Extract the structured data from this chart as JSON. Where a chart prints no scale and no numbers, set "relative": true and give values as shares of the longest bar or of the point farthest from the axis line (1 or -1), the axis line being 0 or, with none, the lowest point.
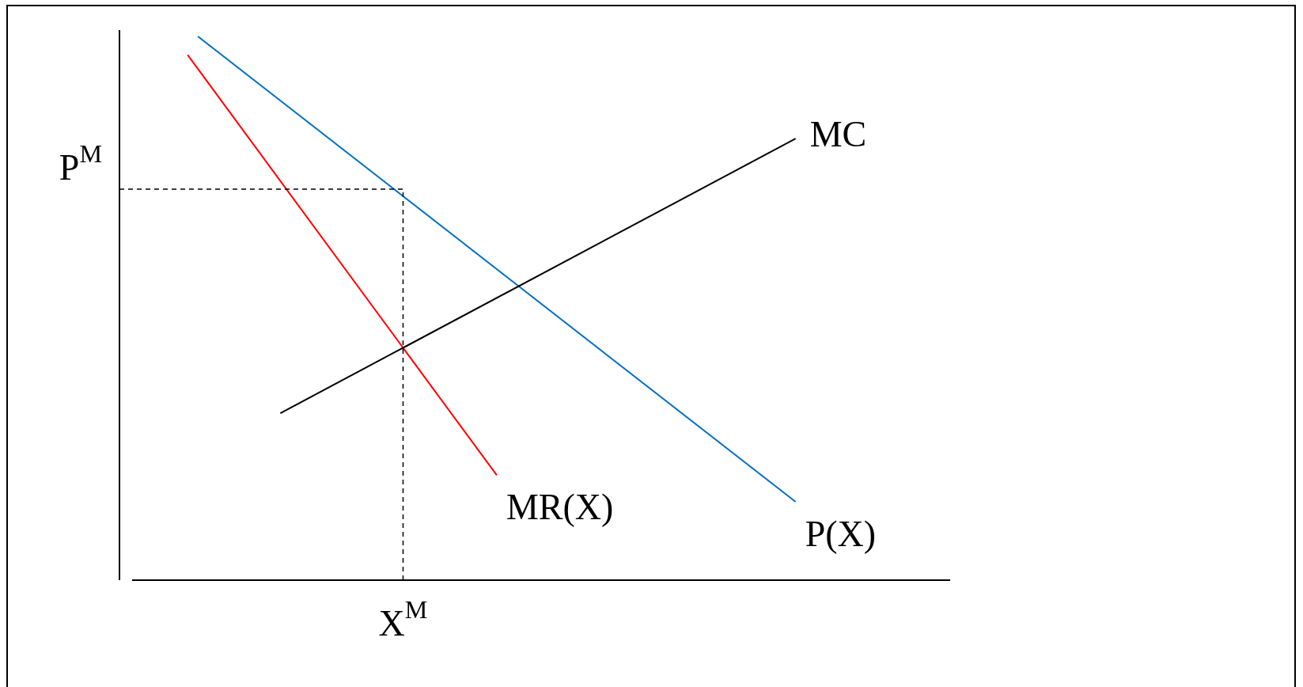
{
  "chart_data": {
    "type": "line",
    "relative": true,
    "legend": false,
    "marker": "none",
    "categories": [
      null,
      null,
      null,
      null,
      null,
      null,
      null,
      null,
      null,
      null,
      null,
      null,
      null,
      null,
      null,
      null,
      null,
      null,
      null,
      null,
      null,
      null,
      null,
      null,
      null,
      null,
      null,
      null,
      null,
      null,
      null,
      null,
      null,
      null,
      null,
      null,
      null,
      null,
      null,
      null,
      null,
      null,
      null,
      null,
      null,
      null,
      null,
      null,
      null,
      null,
      null,
      null,
      null,
      null,
      null,
      null,
      null,
      null,
      null,
      null,
      null,
      null,
      null,
      null,
      null,
      null,
      null,
      null,
      null,
      null,
      null,
      null,
      null,
      null,
      null,
      null,
      null,
      null,
      null,
      null,
      null
    ],
    "series": [
      {
        "name": "MC",
        "color": "#000000",
        "values": [
          null,
          null,
          null,
          null,
          null,
          null,
          null,
          null,
          null,
          null,
          null,
          null,
          null,
          null,
          null,
          0.307,
          null,
          null,
          null,
          null,
          null,
          null,
          null,
          null,
          null,
          null,
          null,
          null,
          null,
          null,
          null,
          null,
          null,
          null,
          null,
          null,
          null,
          null,
          null,
          null,
          null,
          null,
          null,
          null,
          null,
          null,
          null,
          null,
          null,
          null,
          null,
          null,
          null,
          null,
          null,
          null,
          null,
          null,
          null,
          null,
          null,
          null,
          null,
          null,
          null,
          0.812,
          null,
          null,
          null,
          null,
          null,
          null,
          null,
          null,
          null,
          null,
          null,
          null,
          null,
          null,
          null
        ]
      },
      {
        "name": "MR(X)",
        "color": "#ff0000",
        "values": [
          null,
          null,
          null,
          null,
          null,
          null,
          0.966,
          null,
          null,
          null,
          null,
          null,
          null,
          null,
          null,
          null,
          null,
          null,
          null,
          null,
          null,
          null,
          null,
          null,
          null,
          null,
          null,
          null,
          null,
          null,
          null,
          null,
          null,
          null,
          null,
          null,
          0.193,
          null,
          null,
          null,
          null,
          null,
          null,
          null,
          null,
          null,
          null,
          null,
          null,
          null,
          null,
          null,
          null,
          null,
          null,
          null,
          null,
          null,
          null,
          null,
          null,
          null,
          null,
          null,
          null,
          null,
          null,
          null,
          null,
          null,
          null,
          null,
          null,
          null,
          null,
          null,
          null,
          null,
          null,
          null,
          null
        ]
      },
      {
        "name": "P(X)",
        "color": "#0070c0",
        "values": [
          null,
          null,
          null,
          null,
          null,
          null,
          null,
          1,
          null,
          null,
          null,
          null,
          null,
          null,
          null,
          null,
          null,
          null,
          null,
          null,
          null,
          null,
          null,
          null,
          null,
          null,
          null,
          null,
          null,
          null,
          null,
          null,
          null,
          null,
          null,
          null,
          null,
          null,
          null,
          null,
          null,
          null,
          null,
          null,
          null,
          null,
          null,
          null,
          null,
          null,
          null,
          null,
          null,
          null,
          null,
          null,
          null,
          null,
          null,
          null,
          null,
          null,
          null,
          null,
          null,
          0.144,
          null,
          null,
          null,
          null,
          null,
          null,
          null,
          null,
          null,
          null,
          null,
          null,
          null,
          null,
          null
        ]
      }
    ],
    "ref_lines": [
      {
        "axis": "y",
        "value": 0.719,
        "label": "P$^{M}$",
        "color": "#000000",
        "line_style": "dashed"
      }
    ],
    "annotations": [
      "X$^{M}$"
    ]
  }
}
